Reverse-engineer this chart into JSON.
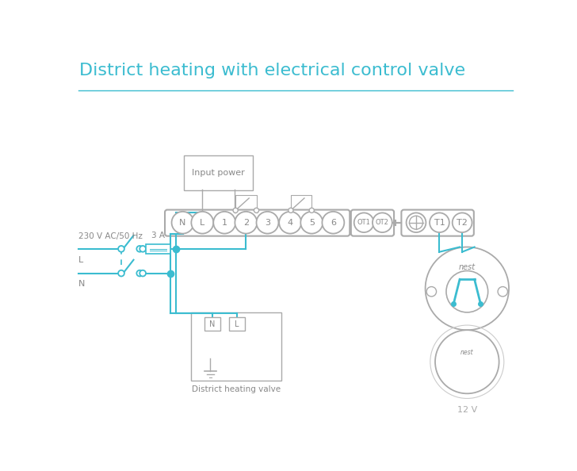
{
  "title": "District heating with electrical control valve",
  "title_color": "#3bbcd0",
  "title_fontsize": 16,
  "wire_color": "#3bbcd0",
  "box_color": "#aaaaaa",
  "text_color": "#888888",
  "bg_color": "#ffffff",
  "terminal_labels": [
    "N",
    "L",
    "1",
    "2",
    "3",
    "4",
    "5",
    "6"
  ],
  "ot_labels": [
    "OT1",
    "OT2"
  ],
  "right_labels": [
    "T1",
    "T2"
  ]
}
